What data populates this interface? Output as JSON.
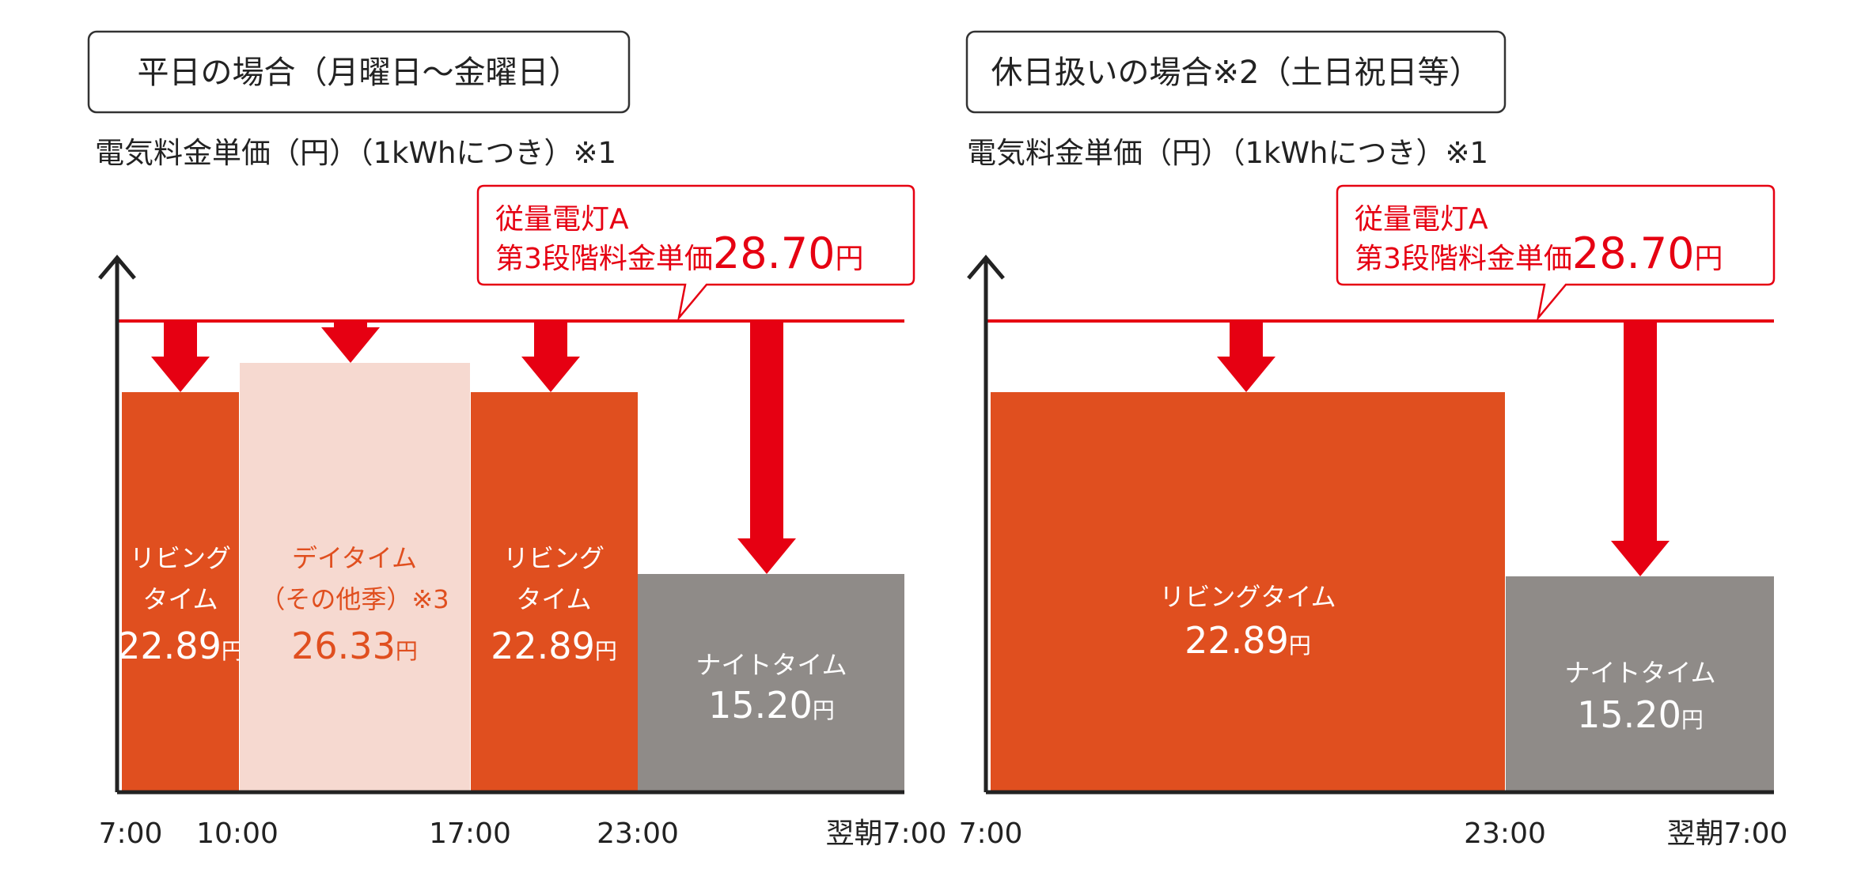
{
  "panels": [
    {
      "title": "平日の場合（月曜日～金曜日）",
      "unit_label": "電気料金単価（円）（1kWhにつき）※1",
      "callout": {
        "line1": "従量電灯A",
        "line2": "第3段階料金単価",
        "price": "28.70",
        "unit": "円"
      },
      "bars": [
        {
          "lines": [
            "リビング",
            "タイム"
          ],
          "price": "22.89",
          "unit": "円"
        },
        {
          "lines": [
            "デイタイム",
            "（その他季）※3"
          ],
          "price": "26.33",
          "unit": "円"
        },
        {
          "lines": [
            "リビング",
            "タイム"
          ],
          "price": "22.89",
          "unit": "円"
        },
        {
          "lines": [
            "ナイトタイム"
          ],
          "price": "15.20",
          "unit": "円"
        }
      ],
      "x_labels": [
        "7:00",
        "10:00",
        "17:00",
        "23:00",
        "翌朝7:00"
      ]
    },
    {
      "title": "休日扱いの場合※2（土日祝日等）",
      "unit_label": "電気料金単価（円）（1kWhにつき）※1",
      "callout": {
        "line1": "従量電灯A",
        "line2": "第3段階料金単価",
        "price": "28.70",
        "unit": "円"
      },
      "bars": [
        {
          "lines": [
            "リビングタイム"
          ],
          "price": "22.89",
          "unit": "円"
        },
        {
          "lines": [
            "ナイトタイム"
          ],
          "price": "15.20",
          "unit": "円"
        }
      ],
      "x_labels": [
        "7:00",
        "23:00",
        "翌朝7:00"
      ]
    }
  ]
}
